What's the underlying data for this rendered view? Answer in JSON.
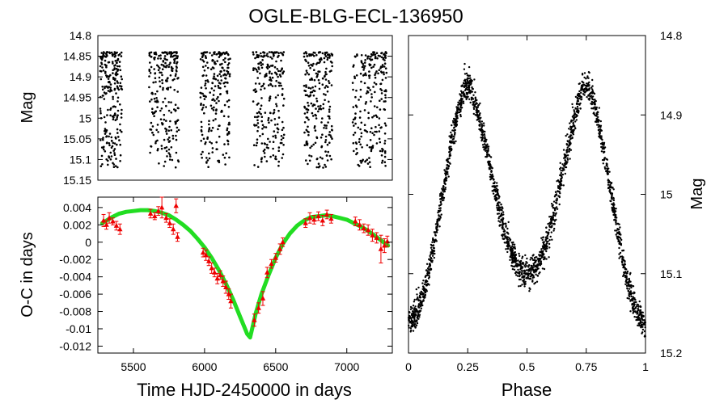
{
  "title": "OGLE-BLG-ECL-136950",
  "chart_data": [
    {
      "id": "light_curve_time",
      "type": "scatter",
      "ylabel": "Mag",
      "xlim": [
        5250,
        7320
      ],
      "ylim": [
        15.15,
        14.8
      ],
      "y_inverted": true,
      "y_ticks": [
        "14.8",
        "14.85",
        "14.9",
        "14.95",
        "15",
        "15.05",
        "15.1",
        "15.15"
      ],
      "y_tick_values": [
        14.8,
        14.85,
        14.9,
        14.95,
        15.0,
        15.05,
        15.1,
        15.15
      ],
      "point_color": "#000000",
      "seasons": [
        [
          5265,
          5420
        ],
        [
          5610,
          5820
        ],
        [
          5970,
          6180
        ],
        [
          6340,
          6560
        ],
        [
          6700,
          6900
        ],
        [
          7040,
          7280
        ]
      ],
      "mag_range": [
        14.84,
        15.12
      ]
    },
    {
      "id": "o_minus_c",
      "type": "scatter+line",
      "xlabel": "Time HJD-2450000 in days",
      "ylabel": "O-C in days",
      "xlim": [
        5250,
        7320
      ],
      "ylim": [
        -0.0128,
        0.0052
      ],
      "x_ticks": [
        "5500",
        "6000",
        "6500",
        "7000"
      ],
      "x_tick_values": [
        5500,
        6000,
        6500,
        7000
      ],
      "y_ticks": [
        "0.004",
        "0.002",
        "0",
        "-0.002",
        "-0.004",
        "-0.006",
        "-0.008",
        "-0.01",
        "-0.012"
      ],
      "y_tick_values": [
        0.004,
        0.002,
        0,
        -0.002,
        -0.004,
        -0.006,
        -0.008,
        -0.01,
        -0.012
      ],
      "fit_color": "#22dd22",
      "marker_color": "#ee0000",
      "fit_curve": {
        "x": [
          5280,
          5350,
          5400,
          5450,
          5500,
          5550,
          5600,
          5650,
          5700,
          5750,
          5800,
          5850,
          5900,
          5950,
          6000,
          6050,
          6100,
          6150,
          6200,
          6250,
          6280,
          6300,
          6320,
          6340,
          6360,
          6400,
          6450,
          6500,
          6550,
          6600,
          6650,
          6700,
          6750,
          6800,
          6850,
          6900,
          6950,
          7000,
          7050,
          7100,
          7150,
          7200,
          7250,
          7290
        ],
        "y": [
          0.0022,
          0.0029,
          0.0033,
          0.0035,
          0.0036,
          0.0037,
          0.0037,
          0.0036,
          0.0034,
          0.0031,
          0.0026,
          0.002,
          0.0013,
          0.0004,
          -0.0006,
          -0.0018,
          -0.0032,
          -0.0048,
          -0.0066,
          -0.0086,
          -0.0098,
          -0.0106,
          -0.011,
          -0.0096,
          -0.0082,
          -0.006,
          -0.0038,
          -0.0018,
          -0.0002,
          0.001,
          0.0019,
          0.0025,
          0.0029,
          0.003,
          0.0031,
          0.003,
          0.0028,
          0.0026,
          0.0022,
          0.0018,
          0.0013,
          0.0007,
          0.0001,
          -0.0004
        ]
      },
      "points": [
        {
          "x": 5290,
          "y": 0.0025,
          "err": 0.0007
        },
        {
          "x": 5310,
          "y": 0.002,
          "err": 0.0005
        },
        {
          "x": 5330,
          "y": 0.0028,
          "err": 0.0006
        },
        {
          "x": 5355,
          "y": 0.0024,
          "err": 0.0004
        },
        {
          "x": 5380,
          "y": 0.0019,
          "err": 0.0005
        },
        {
          "x": 5405,
          "y": 0.0015,
          "err": 0.0006
        },
        {
          "x": 5620,
          "y": 0.0033,
          "err": 0.0005
        },
        {
          "x": 5650,
          "y": 0.003,
          "err": 0.0004
        },
        {
          "x": 5675,
          "y": 0.0036,
          "err": 0.0005
        },
        {
          "x": 5700,
          "y": 0.004,
          "err": 0.0012
        },
        {
          "x": 5730,
          "y": 0.0028,
          "err": 0.0005
        },
        {
          "x": 5755,
          "y": 0.0022,
          "err": 0.0005
        },
        {
          "x": 5780,
          "y": 0.0015,
          "err": 0.0006
        },
        {
          "x": 5800,
          "y": 0.0042,
          "err": 0.0008
        },
        {
          "x": 5810,
          "y": 0.0006,
          "err": 0.0005
        },
        {
          "x": 5990,
          "y": -0.0012,
          "err": 0.0005
        },
        {
          "x": 6010,
          "y": -0.0015,
          "err": 0.0006
        },
        {
          "x": 6030,
          "y": -0.0022,
          "err": 0.0005
        },
        {
          "x": 6050,
          "y": -0.003,
          "err": 0.0006
        },
        {
          "x": 6070,
          "y": -0.0035,
          "err": 0.0005
        },
        {
          "x": 6090,
          "y": -0.0042,
          "err": 0.0006
        },
        {
          "x": 6110,
          "y": -0.0038,
          "err": 0.0005
        },
        {
          "x": 6130,
          "y": -0.0045,
          "err": 0.0006
        },
        {
          "x": 6150,
          "y": -0.0052,
          "err": 0.0007
        },
        {
          "x": 6170,
          "y": -0.006,
          "err": 0.0006
        },
        {
          "x": 6185,
          "y": -0.0068,
          "err": 0.0008
        },
        {
          "x": 6350,
          "y": -0.009,
          "err": 0.0007
        },
        {
          "x": 6380,
          "y": -0.0076,
          "err": 0.0006
        },
        {
          "x": 6410,
          "y": -0.0065,
          "err": 0.0008
        },
        {
          "x": 6440,
          "y": -0.0035,
          "err": 0.0006
        },
        {
          "x": 6470,
          "y": -0.0025,
          "err": 0.0005
        },
        {
          "x": 6500,
          "y": -0.0018,
          "err": 0.0005
        },
        {
          "x": 6530,
          "y": -0.0008,
          "err": 0.0006
        },
        {
          "x": 6550,
          "y": 0.0,
          "err": 0.0005
        },
        {
          "x": 6710,
          "y": 0.0022,
          "err": 0.0005
        },
        {
          "x": 6740,
          "y": 0.0028,
          "err": 0.0006
        },
        {
          "x": 6770,
          "y": 0.0026,
          "err": 0.0005
        },
        {
          "x": 6800,
          "y": 0.003,
          "err": 0.0005
        },
        {
          "x": 6830,
          "y": 0.0025,
          "err": 0.0006
        },
        {
          "x": 6860,
          "y": 0.0032,
          "err": 0.0005
        },
        {
          "x": 6890,
          "y": 0.0027,
          "err": 0.0005
        },
        {
          "x": 7060,
          "y": 0.0024,
          "err": 0.0005
        },
        {
          "x": 7090,
          "y": 0.002,
          "err": 0.0006
        },
        {
          "x": 7120,
          "y": 0.0016,
          "err": 0.0005
        },
        {
          "x": 7150,
          "y": 0.0014,
          "err": 0.0006
        },
        {
          "x": 7180,
          "y": 0.0008,
          "err": 0.0007
        },
        {
          "x": 7210,
          "y": 0.0005,
          "err": 0.0006
        },
        {
          "x": 7240,
          "y": -0.0008,
          "err": 0.0016
        },
        {
          "x": 7265,
          "y": -0.0004,
          "err": 0.0008
        },
        {
          "x": 7285,
          "y": 0.0001,
          "err": 0.0006
        }
      ]
    },
    {
      "id": "phased_light_curve",
      "type": "scatter",
      "xlabel": "Phase",
      "ylabel": "Mag",
      "xlim": [
        0,
        1
      ],
      "ylim": [
        15.2,
        14.8
      ],
      "y_inverted": true,
      "x_ticks": [
        "0",
        "0.25",
        "0.5",
        "0.75",
        "1"
      ],
      "x_tick_values": [
        0,
        0.25,
        0.5,
        0.75,
        1
      ],
      "y_ticks": [
        "14.8",
        "14.9",
        "15",
        "15.1",
        "15.2"
      ],
      "y_tick_values": [
        14.8,
        14.9,
        15.0,
        15.1,
        15.2
      ],
      "point_color": "#000000",
      "maximum_mag": 14.86,
      "primary_minimum_mag": 15.16,
      "secondary_minimum_mag": 15.1,
      "primary_minimum_phase": 0,
      "secondary_minimum_phase": 0.5
    }
  ]
}
